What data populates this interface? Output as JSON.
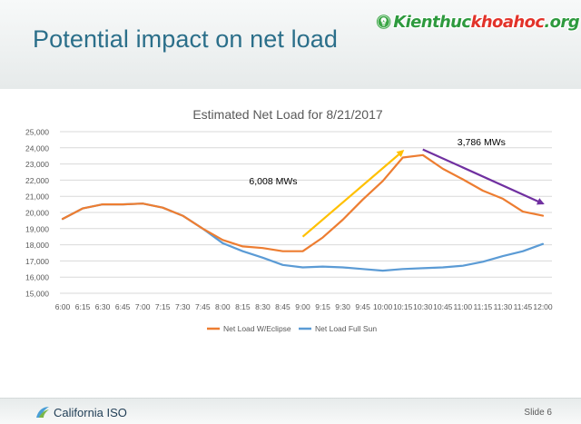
{
  "slide": {
    "title": "Potential impact on net load",
    "slide_number": "Slide 6",
    "footer_logo_text": "California ISO",
    "watermark": {
      "part1": "Kienthuc",
      "part2": "khoahoc",
      "part3": ".org"
    }
  },
  "chart_data": {
    "type": "line",
    "title": "Estimated Net Load for 8/21/2017",
    "xlabel": "",
    "ylabel": "",
    "categories": [
      "6:00",
      "6:15",
      "6:30",
      "6:45",
      "7:00",
      "7:15",
      "7:30",
      "7:45",
      "8:00",
      "8:15",
      "8:30",
      "8:45",
      "9:00",
      "9:15",
      "9:30",
      "9:45",
      "10:00",
      "10:15",
      "10:30",
      "10:45",
      "11:00",
      "11:15",
      "11:30",
      "11:45",
      "12:00"
    ],
    "ylim": [
      15000,
      25000
    ],
    "yticks": [
      15000,
      16000,
      17000,
      18000,
      19000,
      20000,
      21000,
      22000,
      23000,
      24000,
      25000
    ],
    "ytick_labels": [
      "15,000",
      "16,000",
      "17,000",
      "18,000",
      "19,000",
      "20,000",
      "21,000",
      "22,000",
      "23,000",
      "24,000",
      "25,000"
    ],
    "grid": "horizontal",
    "legend_position": "bottom",
    "series": [
      {
        "name": "Net Load W/Eclipse",
        "color": "#ed7d31",
        "values": [
          19600,
          20250,
          20500,
          20500,
          20550,
          20300,
          19800,
          19000,
          18300,
          17900,
          17800,
          17600,
          17600,
          18450,
          19550,
          20800,
          21950,
          23400,
          23550,
          22700,
          22050,
          21350,
          20850,
          20050,
          19800
        ]
      },
      {
        "name": "Net Load Full Sun",
        "color": "#5b9bd5",
        "values": [
          19600,
          20250,
          20500,
          20500,
          20550,
          20300,
          19800,
          19000,
          18100,
          17600,
          17200,
          16750,
          16600,
          16650,
          16600,
          16500,
          16400,
          16500,
          16550,
          16600,
          16700,
          16950,
          17300,
          17600,
          18050
        ]
      }
    ],
    "annotations": [
      {
        "text": "6,008 MWs",
        "arrow_color": "#ffc000",
        "from": {
          "x": "9:00",
          "y": 18500
        },
        "to": {
          "x": "10:15",
          "y": 23800
        }
      },
      {
        "text": "3,786 MWs",
        "arrow_color": "#7030a0",
        "from": {
          "x": "10:30",
          "y": 23900
        },
        "to": {
          "x": "12:00",
          "y": 20550
        }
      }
    ]
  }
}
